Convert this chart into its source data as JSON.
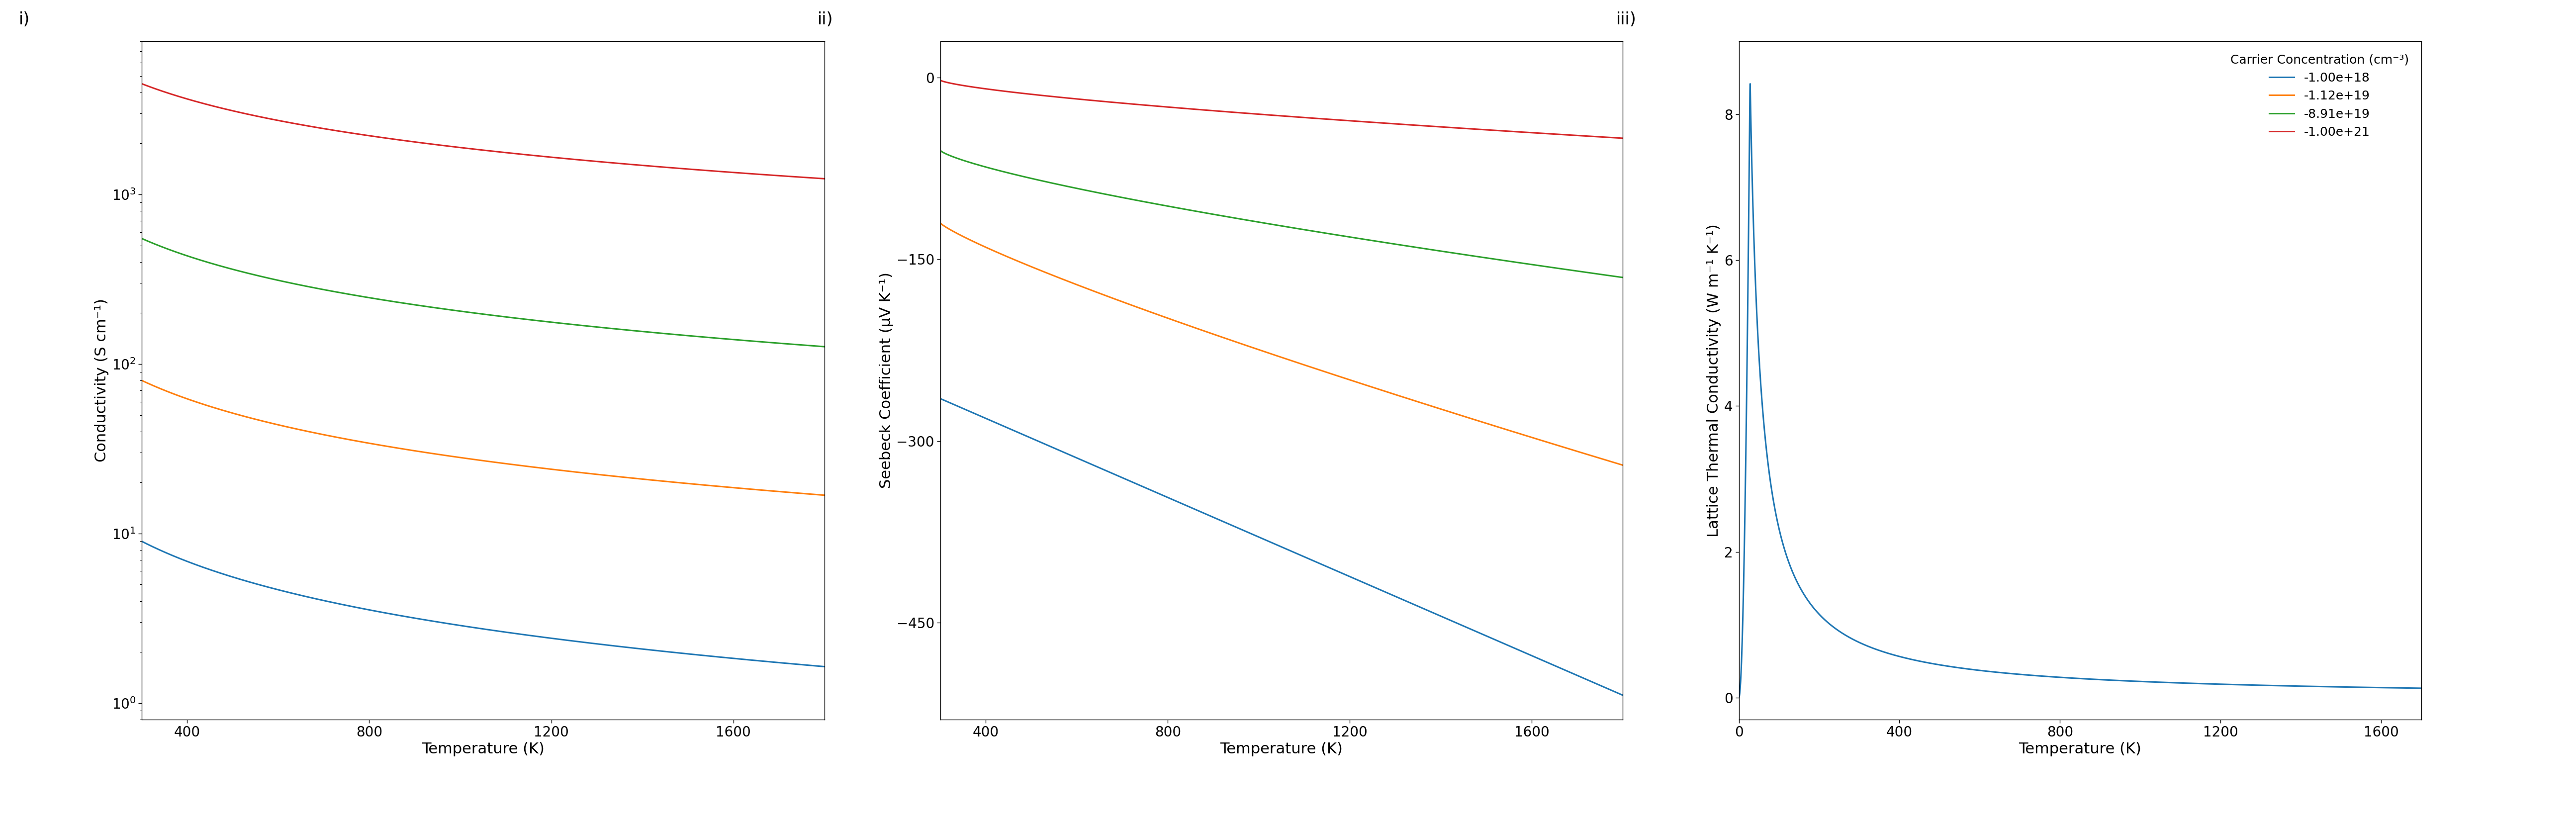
{
  "colors": {
    "blue": "#1f77b4",
    "orange": "#ff7f0e",
    "green": "#2ca02c",
    "red": "#d62728"
  },
  "legend_labels": [
    "-1.00e+18",
    "-1.12e+19",
    "-8.91e+19",
    "-1.00e+21"
  ],
  "legend_title": "Carrier Concentration (cm⁻³)",
  "panel_labels": [
    "i)",
    "ii)",
    "iii)"
  ],
  "plot1": {
    "ylabel": "Conductivity (S cm⁻¹)",
    "xlabel": "Temperature (K)",
    "xmin": 300,
    "xmax": 1800,
    "ymin": 0.8,
    "ymax": 8000,
    "xticks": [
      400,
      800,
      1200,
      1600
    ],
    "ytick_vals": [
      1,
      10,
      100,
      1000
    ]
  },
  "plot2": {
    "ylabel": "Seebeck Coefficient (μV K⁻¹)",
    "xlabel": "Temperature (K)",
    "xmin": 300,
    "xmax": 1800,
    "ymin": -530,
    "ymax": 30,
    "xticks": [
      400,
      800,
      1200,
      1600
    ],
    "yticks": [
      0,
      -150,
      -300,
      -450
    ]
  },
  "plot3": {
    "ylabel": "Lattice Thermal Conductivity (W m⁻¹ K⁻¹)",
    "xlabel": "Temperature (K)",
    "xmin": 0,
    "xmax": 1700,
    "ymin": -0.3,
    "ymax": 9.0,
    "xticks": [
      0,
      400,
      800,
      1200,
      1600
    ],
    "yticks": [
      0,
      2,
      4,
      6,
      8
    ]
  },
  "background_color": "#ffffff",
  "linewidth": 2.2,
  "tick_labelsize": 20,
  "axis_labelsize": 22,
  "panel_labelsize": 24,
  "legend_fontsize": 18,
  "legend_title_fontsize": 18
}
